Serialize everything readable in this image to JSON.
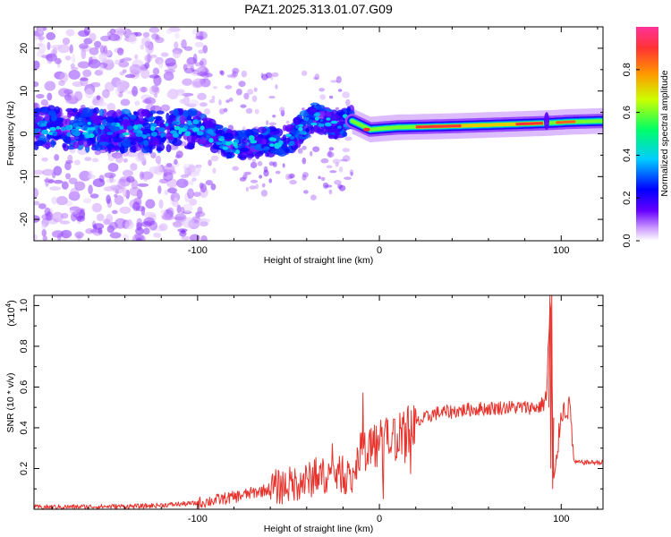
{
  "title": "PAZ1.2025.313.01.07.G09",
  "chart_data": [
    {
      "type": "heatmap",
      "xlabel": "Height of straight line (km)",
      "ylabel": "Frequency (Hz)",
      "xlim": [
        -190,
        123
      ],
      "ylim": [
        -25,
        25
      ],
      "xticks": [
        -100,
        0,
        100
      ],
      "yticks": [
        -20,
        -10,
        0,
        10,
        20
      ],
      "colorbar": {
        "label": "Normalized spectral amplitude",
        "range": [
          0,
          1
        ],
        "ticks": [
          "0.0",
          "0.2",
          "0.4",
          "0.6",
          "0.8"
        ],
        "colormap": [
          "#ffffff",
          "#cc99ff",
          "#6600ff",
          "#0000ff",
          "#00ccff",
          "#00ff66",
          "#ccff00",
          "#ff9900",
          "#ff3333",
          "#ff3399"
        ]
      },
      "ridge": [
        {
          "x": -185,
          "freq": 1.5
        },
        {
          "x": -160,
          "freq": 1.0
        },
        {
          "x": -130,
          "freq": 0.5
        },
        {
          "x": -100,
          "freq": 1.5
        },
        {
          "x": -80,
          "freq": -3.0
        },
        {
          "x": -65,
          "freq": -2.0
        },
        {
          "x": -50,
          "freq": -1.5
        },
        {
          "x": -35,
          "freq": 4.0
        },
        {
          "x": -25,
          "freq": 2.0
        },
        {
          "x": -15,
          "freq": 3.0
        },
        {
          "x": -5,
          "freq": 1.0
        },
        {
          "x": 10,
          "freq": 1.5
        },
        {
          "x": 40,
          "freq": 1.8
        },
        {
          "x": 70,
          "freq": 2.2
        },
        {
          "x": 92,
          "freq": 2.5
        },
        {
          "x": 105,
          "freq": 2.8
        },
        {
          "x": 123,
          "freq": 3.0
        }
      ],
      "peak_segment_x": [
        20,
        45,
        75,
        90
      ],
      "peak_amplitude": 1.0
    },
    {
      "type": "line",
      "xlabel": "Height of straight line (km)",
      "ylabel": "SNR (10 * v/v)",
      "yscale_label": "(x10",
      "yscale_exp": "4",
      "xlim": [
        -190,
        123
      ],
      "ylim": [
        0,
        1.05
      ],
      "xticks": [
        -100,
        0,
        100
      ],
      "yticks": [
        "0.2",
        "0.4",
        "0.6",
        "0.8",
        "1.0"
      ],
      "color": "#e8332d",
      "series_envelope": [
        {
          "x": -190,
          "y": 0.01
        },
        {
          "x": -130,
          "y": 0.015
        },
        {
          "x": -100,
          "y": 0.03
        },
        {
          "x": -80,
          "y": 0.06
        },
        {
          "x": -60,
          "y": 0.1
        },
        {
          "x": -40,
          "y": 0.14
        },
        {
          "x": -25,
          "y": 0.18
        },
        {
          "x": -15,
          "y": 0.15
        },
        {
          "x": -10,
          "y": 0.3
        },
        {
          "x": 0,
          "y": 0.32
        },
        {
          "x": 10,
          "y": 0.36
        },
        {
          "x": 20,
          "y": 0.42
        },
        {
          "x": 30,
          "y": 0.47
        },
        {
          "x": 50,
          "y": 0.49
        },
        {
          "x": 70,
          "y": 0.5
        },
        {
          "x": 88,
          "y": 0.5
        },
        {
          "x": 92,
          "y": 0.55
        },
        {
          "x": 94,
          "y": 1.05
        },
        {
          "x": 96,
          "y": 0.1
        },
        {
          "x": 100,
          "y": 0.48
        },
        {
          "x": 105,
          "y": 0.5
        },
        {
          "x": 107,
          "y": 0.23
        },
        {
          "x": 123,
          "y": 0.23
        }
      ]
    }
  ]
}
